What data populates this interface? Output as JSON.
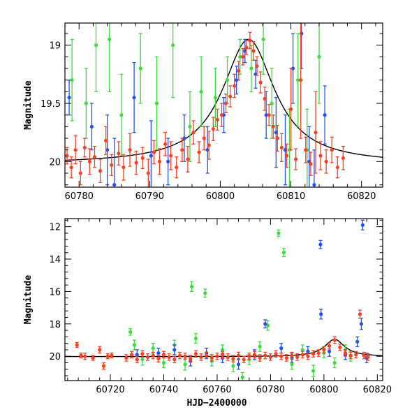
{
  "chart_data": [
    {
      "type": "scatter",
      "panel": "top",
      "ylabel": "Magnitude",
      "xlabel": "",
      "xlim": [
        60778,
        60823
      ],
      "ylim": [
        20.22,
        18.81
      ],
      "y_inverted": true,
      "xticks": [
        60780,
        60790,
        60800,
        60810,
        60820
      ],
      "yticks": [
        19,
        19.5,
        20
      ],
      "ytick_labels": [
        "19",
        "19.5",
        "20"
      ],
      "model_curve": {
        "color": "#000000",
        "t0": 60804.0,
        "baseline": 20.02,
        "peak": 18.95,
        "tE": 4.5
      },
      "series": [
        {
          "color": "#ff3d1f",
          "points": [
            [
              60778.3,
              19.95,
              0.07
            ],
            [
              60778.9,
              20.05,
              0.09
            ],
            [
              60779.5,
              19.9,
              0.12
            ],
            [
              60780.2,
              20.1,
              0.1
            ],
            [
              60780.8,
              19.88,
              0.08
            ],
            [
              60781.5,
              20.0,
              0.11
            ],
            [
              60782.2,
              19.96,
              0.09
            ],
            [
              60783.0,
              20.08,
              0.1
            ],
            [
              60783.8,
              19.82,
              0.12
            ],
            [
              60784.6,
              20.03,
              0.09
            ],
            [
              60785.6,
              19.93,
              0.1
            ],
            [
              60786.3,
              20.05,
              0.11
            ],
            [
              60787.2,
              19.9,
              0.14
            ],
            [
              60788.1,
              20.01,
              0.1
            ],
            [
              60789.0,
              19.97,
              0.09
            ],
            [
              60789.8,
              20.1,
              0.12
            ],
            [
              60790.6,
              19.92,
              0.1
            ],
            [
              60791.4,
              20.0,
              0.11
            ],
            [
              60792.2,
              19.85,
              0.1
            ],
            [
              60793.0,
              19.95,
              0.12
            ],
            [
              60793.8,
              20.05,
              0.09
            ],
            [
              60794.6,
              19.9,
              0.1
            ],
            [
              60795.4,
              19.98,
              0.11
            ],
            [
              60796.2,
              19.75,
              0.1
            ],
            [
              60797.0,
              19.92,
              0.09
            ],
            [
              60797.7,
              19.8,
              0.1
            ],
            [
              60798.4,
              19.86,
              0.12
            ],
            [
              60799.0,
              19.72,
              0.1
            ],
            [
              60799.6,
              19.64,
              0.09
            ],
            [
              60800.2,
              19.6,
              0.1
            ],
            [
              60800.8,
              19.5,
              0.08
            ],
            [
              60801.4,
              19.44,
              0.09
            ],
            [
              60802.0,
              19.35,
              0.1
            ],
            [
              60802.6,
              19.22,
              0.08
            ],
            [
              60803.2,
              19.1,
              0.07
            ],
            [
              60803.7,
              19.02,
              0.06
            ],
            [
              60804.2,
              18.96,
              0.07
            ],
            [
              60804.7,
              19.05,
              0.08
            ],
            [
              60805.2,
              19.18,
              0.08
            ],
            [
              60805.7,
              19.32,
              0.09
            ],
            [
              60806.3,
              19.46,
              0.1
            ],
            [
              60806.9,
              19.6,
              0.09
            ],
            [
              60807.5,
              19.7,
              0.1
            ],
            [
              60808.1,
              19.8,
              0.11
            ],
            [
              60808.7,
              19.88,
              0.12
            ],
            [
              60809.4,
              19.95,
              0.1
            ],
            [
              60810.0,
              19.55,
              0.35
            ],
            [
              60810.7,
              19.98,
              0.09
            ],
            [
              60811.4,
              19.3,
              0.5
            ],
            [
              60812.1,
              19.9,
              0.11
            ],
            [
              60812.8,
              20.02,
              0.1
            ],
            [
              60813.5,
              19.75,
              0.35
            ],
            [
              60814.2,
              19.95,
              0.12
            ],
            [
              60815.0,
              20.0,
              0.1
            ],
            [
              60815.8,
              19.9,
              0.11
            ],
            [
              60816.6,
              20.05,
              0.09
            ],
            [
              60817.4,
              19.97,
              0.1
            ]
          ]
        },
        {
          "color": "#1e50ff",
          "points": [
            [
              60778.6,
              19.45,
              0.15
            ],
            [
              60781.8,
              19.7,
              0.2
            ],
            [
              60784.0,
              19.9,
              0.3
            ],
            [
              60785.0,
              20.2,
              0.4
            ],
            [
              60787.8,
              19.45,
              0.3
            ],
            [
              60790.2,
              19.95,
              0.3
            ],
            [
              60792.6,
              20.0,
              0.2
            ],
            [
              60794.9,
              19.8,
              0.2
            ],
            [
              60798.2,
              19.9,
              0.2
            ],
            [
              60800.5,
              19.6,
              0.15
            ],
            [
              60802.3,
              19.3,
              0.12
            ],
            [
              60803.5,
              19.05,
              0.1
            ],
            [
              60805.0,
              19.25,
              0.12
            ],
            [
              60806.5,
              19.6,
              0.2
            ],
            [
              60807.9,
              19.75,
              0.3
            ],
            [
              60809.2,
              19.9,
              0.3
            ],
            [
              60810.3,
              19.2,
              0.3
            ],
            [
              60811.5,
              18.9,
              0.3
            ],
            [
              60812.6,
              20.0,
              0.3
            ],
            [
              60813.3,
              20.2,
              0.3
            ],
            [
              60814.8,
              19.6,
              0.25
            ]
          ]
        },
        {
          "color": "#3ddc3d",
          "points": [
            [
              60779.0,
              19.3,
              0.35
            ],
            [
              60781.0,
              19.5,
              0.3
            ],
            [
              60782.4,
              19.0,
              0.4
            ],
            [
              60784.3,
              18.95,
              0.45
            ],
            [
              60786.0,
              19.6,
              0.35
            ],
            [
              60788.7,
              19.2,
              0.3
            ],
            [
              60791.0,
              19.5,
              0.4
            ],
            [
              60793.3,
              19.0,
              0.45
            ],
            [
              60795.7,
              19.7,
              0.3
            ],
            [
              60797.3,
              19.4,
              0.3
            ],
            [
              60799.3,
              19.45,
              0.25
            ],
            [
              60801.0,
              19.3,
              0.2
            ],
            [
              60802.8,
              19.1,
              0.15
            ],
            [
              60804.4,
              19.2,
              0.2
            ],
            [
              60806.1,
              18.95,
              0.3
            ],
            [
              60807.3,
              19.5,
              0.3
            ],
            [
              60809.8,
              19.9,
              0.35
            ],
            [
              60811.0,
              19.3,
              0.4
            ],
            [
              60812.3,
              19.9,
              0.35
            ],
            [
              60814.0,
              19.1,
              0.4
            ]
          ]
        }
      ]
    },
    {
      "type": "scatter",
      "panel": "bottom",
      "ylabel": "Magnitude",
      "xlabel": "HJD−2400000",
      "xlim": [
        60703,
        60822
      ],
      "ylim": [
        21.5,
        11.5
      ],
      "y_inverted": true,
      "xticks": [
        60720,
        60740,
        60760,
        60780,
        60800,
        60820
      ],
      "yticks": [
        12,
        14,
        16,
        18,
        20
      ],
      "ytick_labels": [
        "12",
        "14",
        "16",
        "18",
        "20"
      ],
      "model_curve": {
        "color": "#000000",
        "t0": 60804.0,
        "baseline": 20.02,
        "peak": 18.95,
        "tE": 4.5
      },
      "series": [
        {
          "color": "#ff3d1f",
          "points": [
            [
              60707.5,
              19.3,
              0.15
            ],
            [
              60709.0,
              19.95,
              0.15
            ],
            [
              60710.5,
              20.0,
              0.2
            ],
            [
              60713.5,
              20.1,
              0.15
            ],
            [
              60716.0,
              19.6,
              0.2
            ],
            [
              60717.5,
              20.6,
              0.2
            ],
            [
              60719.0,
              20.0,
              0.15
            ],
            [
              60720.5,
              19.95,
              0.15
            ],
            [
              60726.0,
              20.1,
              0.2
            ],
            [
              60728.0,
              19.9,
              0.2
            ],
            [
              60730.0,
              20.2,
              0.2
            ],
            [
              60732.0,
              19.85,
              0.2
            ],
            [
              60734.0,
              20.05,
              0.2
            ],
            [
              60736.0,
              19.95,
              0.2
            ],
            [
              60738.0,
              20.15,
              0.2
            ],
            [
              60740.0,
              19.9,
              0.2
            ],
            [
              60742.0,
              20.05,
              0.2
            ],
            [
              60744.0,
              20.2,
              0.2
            ],
            [
              60746.0,
              19.95,
              0.2
            ],
            [
              60748.0,
              20.0,
              0.2
            ],
            [
              60750.0,
              20.15,
              0.2
            ],
            [
              60752.0,
              19.85,
              0.2
            ],
            [
              60754.0,
              20.05,
              0.2
            ],
            [
              60756.0,
              19.95,
              0.2
            ],
            [
              60758.0,
              20.1,
              0.2
            ],
            [
              60760.0,
              20.0,
              0.2
            ],
            [
              60762.0,
              19.9,
              0.2
            ],
            [
              60764.0,
              20.05,
              0.2
            ],
            [
              60766.0,
              20.15,
              0.2
            ],
            [
              60768.0,
              19.95,
              0.2
            ],
            [
              60770.0,
              20.2,
              0.2
            ],
            [
              60772.0,
              20.0,
              0.2
            ],
            [
              60774.0,
              19.9,
              0.2
            ],
            [
              60776.0,
              20.1,
              0.2
            ],
            [
              60778.0,
              19.95,
              0.2
            ],
            [
              60780.0,
              20.05,
              0.2
            ],
            [
              60782.0,
              19.85,
              0.2
            ],
            [
              60784.0,
              20.0,
              0.2
            ],
            [
              60786.0,
              20.1,
              0.2
            ],
            [
              60788.0,
              19.95,
              0.2
            ],
            [
              60790.0,
              20.05,
              0.2
            ],
            [
              60792.0,
              19.9,
              0.2
            ],
            [
              60794.0,
              20.0,
              0.2
            ],
            [
              60796.0,
              19.85,
              0.2
            ],
            [
              60798.0,
              19.8,
              0.2
            ],
            [
              60800.0,
              19.6,
              0.2
            ],
            [
              60802.0,
              19.35,
              0.2
            ],
            [
              60804.0,
              19.0,
              0.2
            ],
            [
              60806.0,
              19.45,
              0.2
            ],
            [
              60808.0,
              19.8,
              0.2
            ],
            [
              60810.0,
              19.95,
              0.2
            ],
            [
              60812.0,
              19.9,
              0.2
            ],
            [
              60813.5,
              17.4,
              0.25
            ],
            [
              60815.0,
              19.95,
              0.2
            ],
            [
              60816.5,
              20.05,
              0.2
            ]
          ]
        },
        {
          "color": "#1e50ff",
          "points": [
            [
              60730.0,
              19.9,
              0.3
            ],
            [
              60738.0,
              19.8,
              0.3
            ],
            [
              60744.0,
              19.6,
              0.3
            ],
            [
              60750.0,
              20.3,
              0.3
            ],
            [
              60756.0,
              19.8,
              0.3
            ],
            [
              60762.0,
              20.1,
              0.3
            ],
            [
              60768.0,
              20.5,
              0.3
            ],
            [
              60774.0,
              19.9,
              0.3
            ],
            [
              60778.0,
              18.0,
              0.25
            ],
            [
              60784.0,
              19.5,
              0.3
            ],
            [
              60788.0,
              20.1,
              0.3
            ],
            [
              60794.0,
              19.7,
              0.3
            ],
            [
              60798.7,
              13.1,
              0.25
            ],
            [
              60798.9,
              17.4,
              0.3
            ],
            [
              60802.0,
              19.7,
              0.3
            ],
            [
              60808.0,
              19.9,
              0.3
            ],
            [
              60812.5,
              19.1,
              0.3
            ],
            [
              60814.0,
              18.0,
              0.35
            ],
            [
              60814.5,
              11.9,
              0.3
            ],
            [
              60816.0,
              20.1,
              0.3
            ]
          ]
        },
        {
          "color": "#3ddc3d",
          "points": [
            [
              60727.5,
              18.5,
              0.2
            ],
            [
              60729.0,
              19.3,
              0.3
            ],
            [
              60732.0,
              20.2,
              0.35
            ],
            [
              60736.0,
              19.5,
              0.3
            ],
            [
              60740.0,
              20.4,
              0.3
            ],
            [
              60744.0,
              19.3,
              0.3
            ],
            [
              60748.0,
              20.5,
              0.35
            ],
            [
              60750.5,
              15.7,
              0.3
            ],
            [
              60752.0,
              18.9,
              0.3
            ],
            [
              60755.5,
              16.1,
              0.25
            ],
            [
              60758.0,
              20.3,
              0.3
            ],
            [
              60762.0,
              19.6,
              0.3
            ],
            [
              60766.0,
              20.6,
              0.35
            ],
            [
              60769.5,
              21.3,
              0.3
            ],
            [
              60772.0,
              20.2,
              0.3
            ],
            [
              60776.0,
              19.4,
              0.3
            ],
            [
              60779.0,
              18.1,
              0.3
            ],
            [
              60783.0,
              12.4,
              0.2
            ],
            [
              60785.0,
              13.6,
              0.25
            ],
            [
              60788.0,
              20.5,
              0.3
            ],
            [
              60792.0,
              19.6,
              0.3
            ],
            [
              60796.0,
              20.9,
              0.35
            ],
            [
              60800.0,
              19.8,
              0.3
            ],
            [
              60804.0,
              20.4,
              0.3
            ],
            [
              60808.0,
              19.6,
              0.3
            ],
            [
              60810.0,
              20.0,
              0.3
            ]
          ]
        }
      ]
    }
  ]
}
